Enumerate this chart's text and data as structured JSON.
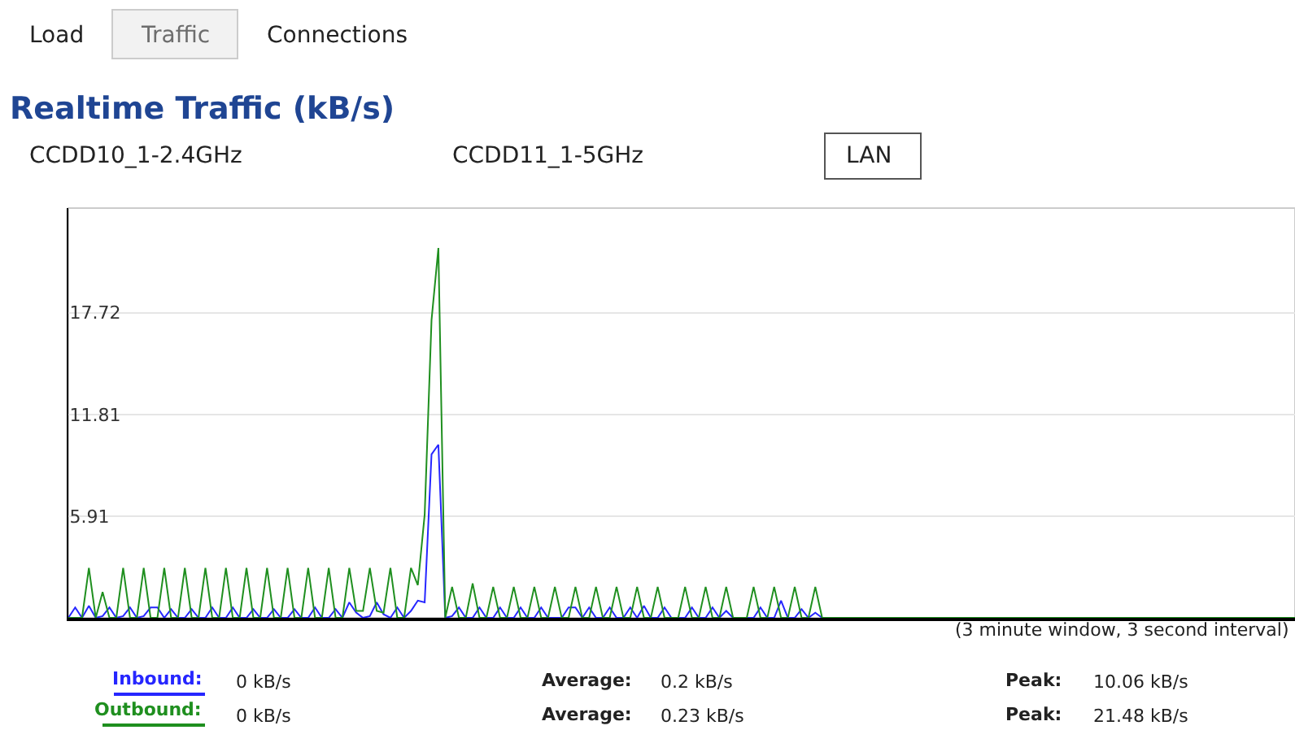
{
  "chart_data": {
    "type": "line",
    "title": "Realtime Traffic (kB/s)",
    "categories": [
      null,
      null,
      null,
      null,
      null,
      null,
      null,
      null,
      null,
      null,
      null,
      null,
      null,
      null,
      null,
      null,
      null,
      null,
      null,
      null,
      null,
      null,
      null,
      null,
      null,
      null,
      null,
      null,
      null,
      null,
      null,
      null,
      null,
      null,
      null,
      null,
      null,
      null,
      null,
      null,
      null,
      null,
      null,
      null,
      null,
      null,
      null,
      null,
      null,
      null,
      null,
      null,
      null,
      null,
      null,
      null,
      null,
      null,
      null,
      null,
      null,
      null,
      null,
      null,
      null,
      null,
      null,
      null,
      null,
      null,
      null,
      null,
      null,
      null,
      null,
      null,
      null,
      null,
      null,
      null,
      null,
      null,
      null,
      null,
      null,
      null,
      null,
      null,
      null,
      null,
      null,
      null,
      null,
      null,
      null,
      null,
      null,
      null,
      null,
      null,
      null,
      null,
      null,
      null,
      null,
      null,
      null,
      null,
      null,
      null,
      null,
      null,
      null,
      null,
      null,
      null,
      null,
      null,
      null,
      null,
      null,
      null,
      null,
      null,
      null,
      null,
      null,
      null,
      null,
      null,
      null,
      null,
      null,
      null,
      null,
      null,
      null,
      null,
      null,
      null,
      null,
      null,
      null,
      null,
      null,
      null,
      null,
      null,
      null,
      null,
      null,
      null,
      null,
      null,
      null,
      null,
      null,
      null,
      null,
      null,
      null,
      null,
      null,
      null,
      null,
      null,
      null,
      null,
      null,
      null,
      null,
      null,
      null,
      null,
      null,
      null,
      null,
      null,
      null,
      null
    ],
    "series": [
      {
        "name": "Inbound:",
        "color": "#2626ff",
        "values": [
          0,
          0.6,
          0,
          0.7,
          0,
          0.1,
          0.6,
          0,
          0.1,
          0.6,
          0,
          0.1,
          0.6,
          0.6,
          0,
          0.5,
          0,
          0,
          0.5,
          0,
          0,
          0.6,
          0,
          0,
          0.6,
          0,
          0,
          0.5,
          0,
          0,
          0.5,
          0,
          0,
          0.5,
          0,
          0,
          0.6,
          0,
          0,
          0.5,
          0,
          0.9,
          0.3,
          0,
          0.1,
          0.9,
          0.2,
          0,
          0.6,
          0,
          0.4,
          1.0,
          0.9,
          9.5,
          10.06,
          0,
          0.1,
          0.6,
          0,
          0,
          0.6,
          0,
          0,
          0.6,
          0,
          0,
          0.6,
          0,
          0,
          0.6,
          0,
          0,
          0,
          0.6,
          0.6,
          0,
          0.6,
          0,
          0,
          0.6,
          0,
          0,
          0.6,
          0,
          0.7,
          0,
          0,
          0.6,
          0,
          0,
          0,
          0.6,
          0,
          0,
          0.6,
          0,
          0.4,
          0,
          0,
          0,
          0,
          0.6,
          0,
          0,
          1.0,
          0,
          0,
          0.5,
          0,
          0.3,
          0,
          0,
          null,
          null,
          null,
          null,
          null,
          null,
          null,
          null,
          null,
          null,
          null,
          null,
          null,
          null,
          null,
          null,
          null,
          null,
          null,
          null,
          null,
          null,
          null,
          null,
          null,
          null,
          null,
          null,
          null,
          null,
          null,
          null,
          null,
          null,
          null,
          null,
          null,
          null,
          null,
          null,
          null,
          null,
          null,
          null,
          null,
          null,
          null,
          null,
          null,
          null,
          null,
          null,
          null,
          null,
          null,
          null,
          null,
          null,
          null,
          null,
          null,
          null,
          null,
          null,
          null,
          null,
          null,
          null
        ]
      },
      {
        "name": "Outbound:",
        "color": "#1f8f1f",
        "values": [
          0,
          0,
          0,
          2.9,
          0,
          1.5,
          0,
          0,
          2.9,
          0,
          0,
          2.9,
          0,
          0,
          2.9,
          0,
          0,
          2.9,
          0,
          0,
          2.9,
          0,
          0,
          2.9,
          0,
          0,
          2.9,
          0,
          0,
          2.9,
          0,
          0,
          2.9,
          0,
          0,
          2.9,
          0,
          0,
          2.9,
          0,
          0,
          2.9,
          0.4,
          0.4,
          2.9,
          0.4,
          0.3,
          2.9,
          0,
          0,
          2.9,
          1.9,
          6.0,
          17.3,
          21.48,
          0,
          1.8,
          0,
          0,
          2.0,
          0,
          0,
          1.8,
          0,
          0,
          1.8,
          0,
          0,
          1.8,
          0,
          0,
          1.8,
          0,
          0,
          1.8,
          0,
          0,
          1.8,
          0,
          0,
          1.8,
          0,
          0,
          1.8,
          0,
          0,
          1.8,
          0,
          0,
          0,
          1.8,
          0,
          0,
          1.8,
          0,
          0,
          1.8,
          0,
          0,
          0,
          1.8,
          0,
          0,
          1.8,
          0,
          0,
          1.8,
          0,
          0,
          1.8,
          0,
          0,
          0,
          0,
          0,
          0,
          0,
          0,
          0,
          0,
          0,
          0,
          0,
          0,
          0,
          0,
          0,
          0,
          0,
          0,
          0,
          0,
          0,
          0,
          0,
          0,
          0,
          0,
          0,
          0,
          0,
          0,
          0,
          0,
          0,
          0,
          0,
          0,
          0,
          0,
          0,
          0,
          0,
          0,
          0,
          0,
          0,
          0,
          0,
          0,
          0,
          0,
          0,
          0,
          0,
          0,
          0,
          0,
          0,
          0,
          0,
          0,
          0,
          0,
          0,
          0,
          0,
          0,
          0,
          0
        ]
      }
    ],
    "ylim": [
      0,
      23.8
    ],
    "yticks": [
      5.91,
      11.81,
      17.72
    ],
    "grid": "y",
    "tick_labels": "y",
    "legend": "bottom",
    "marker": "none",
    "line_style": "solid",
    "annotations": [
      "Load",
      "Traffic",
      "Connections",
      "CCDD10_1-2.4GHz",
      "CCDD11_1-5GHz",
      "LAN",
      "(3 minute window, 3 second interval)",
      "0 kB/s",
      "Average:",
      "0.2 kB/s",
      "Peak:",
      "10.06 kB/s",
      "0 kB/s",
      "Average:",
      "0.23 kB/s",
      "Peak:",
      "21.48 kB/s"
    ]
  }
}
